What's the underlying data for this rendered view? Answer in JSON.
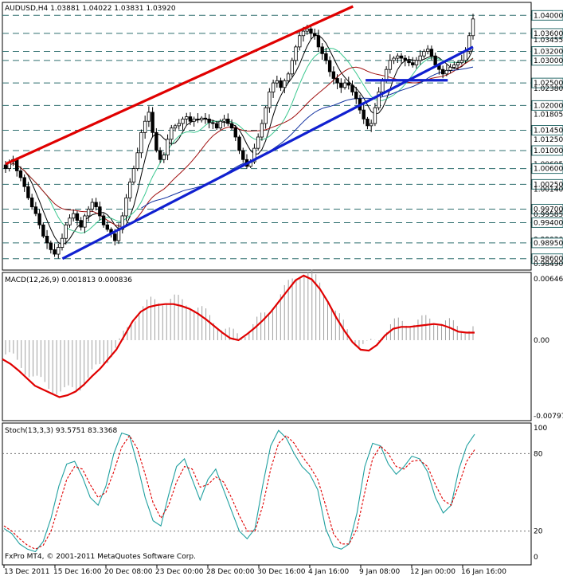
{
  "window": {
    "symbol_header": "AUDUSD,H4  1.03881 1.04022 1.03831 1.03920",
    "footer": "FxPro MT4, © 2001-2011 MetaQuotes Software Corp."
  },
  "colors": {
    "background": "#ffffff",
    "grid": "#2f6f6f",
    "candle_bull": "#ffffff",
    "candle_bear": "#000000",
    "trend_red": "#e00000",
    "trend_blue": "#1020d0",
    "ma_black": "#000000",
    "ma_green": "#3cc890",
    "ma_red": "#a01010",
    "ma_blue": "#1030a0",
    "macd_line": "#e00000",
    "macd_hist": "#a0a0a0",
    "stoch_main": "#20a0a0",
    "stoch_signal": "#e00000"
  },
  "chart_data": [
    {
      "type": "candlestick",
      "title": "AUDUSD,H4",
      "ohlc_header": "1.03881 1.04022 1.03831 1.03920",
      "ylim": [
        0.984,
        1.042
      ],
      "y_tick_labels": [
        "1.04000",
        "1.03600",
        "1.03455",
        "1.03200",
        "1.03000",
        "1.02500",
        "1.02380",
        "1.02000",
        "1.01805",
        "1.01450",
        "1.01250",
        "1.01000",
        "1.00695",
        "1.00600",
        "1.00250",
        "1.00140",
        "0.99700",
        "0.99585",
        "0.99400",
        "0.99030",
        "0.98950",
        "0.98600",
        "0.98490"
      ],
      "y_ticks": [
        1.04,
        1.036,
        1.03455,
        1.032,
        1.03,
        1.025,
        1.0238,
        1.02,
        1.01805,
        1.0145,
        1.0125,
        1.01,
        1.00695,
        1.006,
        1.0025,
        1.0014,
        0.997,
        0.99585,
        0.994,
        0.9903,
        0.9895,
        0.986,
        0.9849
      ],
      "horizontal_levels": [
        1.04,
        1.036,
        1.032,
        1.03,
        1.025,
        1.02,
        1.0145,
        1.01,
        1.006,
        1.0025,
        0.997,
        0.994,
        0.9895,
        0.986
      ],
      "x_tick_labels": [
        "13 Dec 2011",
        "15 Dec 16:00",
        "20 Dec 08:00",
        "23 Dec 00:00",
        "28 Dec 00:00",
        "30 Dec 16:00",
        "4 Jan 16:00",
        "9 Jan 08:00",
        "12 Jan 00:00",
        "16 Jan 16:00"
      ],
      "close": [
        1.006,
        1.0075,
        1.008,
        1.0055,
        1.004,
        1.002,
        0.9995,
        0.9975,
        0.996,
        0.9935,
        0.991,
        0.9895,
        0.988,
        0.987,
        0.9885,
        0.9905,
        0.9935,
        0.995,
        0.996,
        0.9945,
        0.993,
        0.9955,
        0.997,
        0.9985,
        0.9975,
        0.9955,
        0.9935,
        0.9925,
        0.9915,
        0.99,
        0.9925,
        0.9955,
        0.9995,
        1.003,
        1.006,
        1.0095,
        1.014,
        1.0165,
        1.0185,
        1.014,
        1.01,
        1.008,
        1.009,
        1.0125,
        1.015,
        1.0155,
        1.016,
        1.017,
        1.0175,
        1.0165,
        1.017,
        1.0168,
        1.0172,
        1.017,
        1.0162,
        1.016,
        1.015,
        1.0165,
        1.017,
        1.016,
        1.015,
        1.013,
        1.01,
        1.008,
        1.0065,
        1.0075,
        1.0105,
        1.013,
        1.016,
        1.0195,
        1.023,
        1.025,
        1.0255,
        1.024,
        1.0255,
        1.027,
        1.03,
        1.033,
        1.0355,
        1.0365,
        1.037,
        1.036,
        1.0355,
        1.033,
        1.0315,
        1.03,
        1.0275,
        1.026,
        1.025,
        1.024,
        1.025,
        1.0245,
        1.023,
        1.0215,
        1.019,
        1.017,
        1.0155,
        1.016,
        1.0195,
        1.023,
        1.0255,
        1.028,
        1.03,
        1.0305,
        1.031,
        1.0305,
        1.03,
        1.0295,
        1.029,
        1.03,
        1.031,
        1.032,
        1.0325,
        1.031,
        1.029,
        1.028,
        1.027,
        1.0278,
        1.0285,
        1.029,
        1.0295,
        1.03,
        1.032,
        1.0355,
        1.0392
      ],
      "moving_averages": [
        {
          "color": "#000000",
          "role": "fast MA"
        },
        {
          "color": "#3cc890",
          "role": "medium MA"
        },
        {
          "color": "#a01010",
          "role": "slow MA"
        },
        {
          "color": "#1030a0",
          "role": "long MA"
        }
      ],
      "trendlines": [
        {
          "color": "#e00000",
          "from": [
            0,
            1.007
          ],
          "to": [
            110,
            1.042
          ]
        },
        {
          "color": "#1020d0",
          "from": [
            18,
            0.986
          ],
          "to": [
            148,
            1.033
          ]
        },
        {
          "color": "#1020d0",
          "from": [
            114,
            1.0256
          ],
          "to": [
            140,
            1.0256
          ]
        }
      ]
    },
    {
      "type": "histogram+line",
      "title": "MACD(12,26,9) 0.001813 0.000836",
      "ylim": [
        -0.00797,
        0.00646
      ],
      "y_tick_labels": [
        "0.00646",
        "0.00",
        "-0.00797"
      ],
      "y_ticks": [
        0.00646,
        0.0,
        -0.00797
      ],
      "signal": [
        -0.002,
        -0.0025,
        -0.0032,
        -0.004,
        -0.0048,
        -0.0052,
        -0.0056,
        -0.006,
        -0.0058,
        -0.0054,
        -0.0047,
        -0.0038,
        -0.003,
        -0.002,
        -0.001,
        0.0005,
        0.002,
        0.003,
        0.0035,
        0.0037,
        0.0038,
        0.0038,
        0.0036,
        0.0033,
        0.0028,
        0.0022,
        0.0015,
        0.0008,
        0.0002,
        0.0,
        0.0006,
        0.0013,
        0.0021,
        0.003,
        0.0041,
        0.0052,
        0.0063,
        0.0068,
        0.0064,
        0.0054,
        0.004,
        0.0024,
        0.001,
        -0.0002,
        -0.001,
        -0.0011,
        -0.0005,
        0.0005,
        0.0012,
        0.0014,
        0.0014,
        0.0015,
        0.0016,
        0.0017,
        0.0016,
        0.0013,
        0.0009,
        0.0008,
        0.0008
      ]
    },
    {
      "type": "line",
      "title": "Stoch(13,3,3) 93.5751 83.3368",
      "ylim": [
        0,
        100
      ],
      "y_tick_labels": [
        "100",
        "80",
        "20",
        "0"
      ],
      "y_ticks": [
        100,
        80,
        20,
        0
      ],
      "main": [
        22,
        18,
        10,
        6,
        4,
        12,
        30,
        55,
        72,
        74,
        62,
        46,
        40,
        55,
        80,
        96,
        94,
        72,
        46,
        28,
        24,
        48,
        70,
        76,
        60,
        44,
        60,
        68,
        52,
        36,
        20,
        14,
        22,
        56,
        86,
        98,
        92,
        80,
        70,
        64,
        52,
        22,
        8,
        6,
        10,
        34,
        70,
        88,
        86,
        72,
        64,
        70,
        78,
        76,
        66,
        46,
        34,
        40,
        68,
        86,
        95
      ],
      "signal": [
        24,
        20,
        14,
        9,
        6,
        9,
        20,
        40,
        60,
        70,
        68,
        56,
        46,
        50,
        66,
        85,
        94,
        84,
        64,
        42,
        30,
        40,
        58,
        70,
        68,
        54,
        56,
        62,
        58,
        46,
        32,
        20,
        20,
        40,
        68,
        88,
        94,
        88,
        78,
        70,
        60,
        40,
        18,
        10,
        10,
        22,
        50,
        76,
        86,
        80,
        70,
        68,
        74,
        75,
        70,
        56,
        44,
        40,
        56,
        74,
        83
      ]
    }
  ]
}
